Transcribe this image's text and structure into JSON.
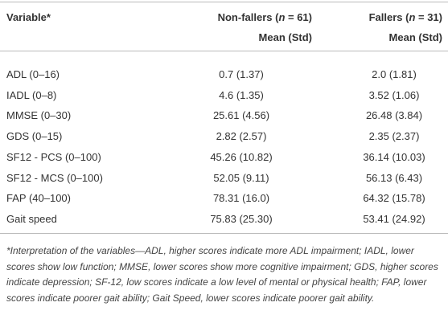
{
  "header": {
    "columns": [
      {
        "label": "Variable*"
      },
      {
        "parts": [
          "Non-fallers (",
          "n",
          " = 61)"
        ],
        "subtitle": "Mean (Std)"
      },
      {
        "parts": [
          "Fallers (",
          "n",
          " = 31)"
        ],
        "subtitle": "Mean (Std)"
      }
    ]
  },
  "table": {
    "rows": [
      [
        "ADL (0–16)",
        "0.7 (1.37)",
        "2.0 (1.81)"
      ],
      [
        "IADL (0–8)",
        "4.6 (1.35)",
        "3.52 (1.06)"
      ],
      [
        "MMSE (0–30)",
        "25.61 (4.56)",
        "26.48 (3.84)"
      ],
      [
        "GDS (0–15)",
        "2.82 (2.57)",
        "2.35 (2.37)"
      ],
      [
        "SF12 - PCS (0–100)",
        "45.26 (10.82)",
        "36.14 (10.03)"
      ],
      [
        "SF12 - MCS (0–100)",
        "52.05 (9.11)",
        "56.13 (6.43)"
      ],
      [
        "FAP (40–100)",
        "78.31 (16.0)",
        "64.32 (15.78)"
      ],
      [
        "Gait speed",
        "75.83 (25.30)",
        "53.41 (24.92)"
      ]
    ]
  },
  "footnote": "*Interpretation of the variables—ADL, higher scores indicate more ADL impairment; IADL, lower scores show low function; MMSE, lower scores show more cognitive impairment; GDS, higher scores indicate depression; SF-12, low scores indicate a low level of mental or physical health; FAP, lower scores indicate poorer gait ability; Gait Speed, lower scores indicate poorer gait ability."
}
